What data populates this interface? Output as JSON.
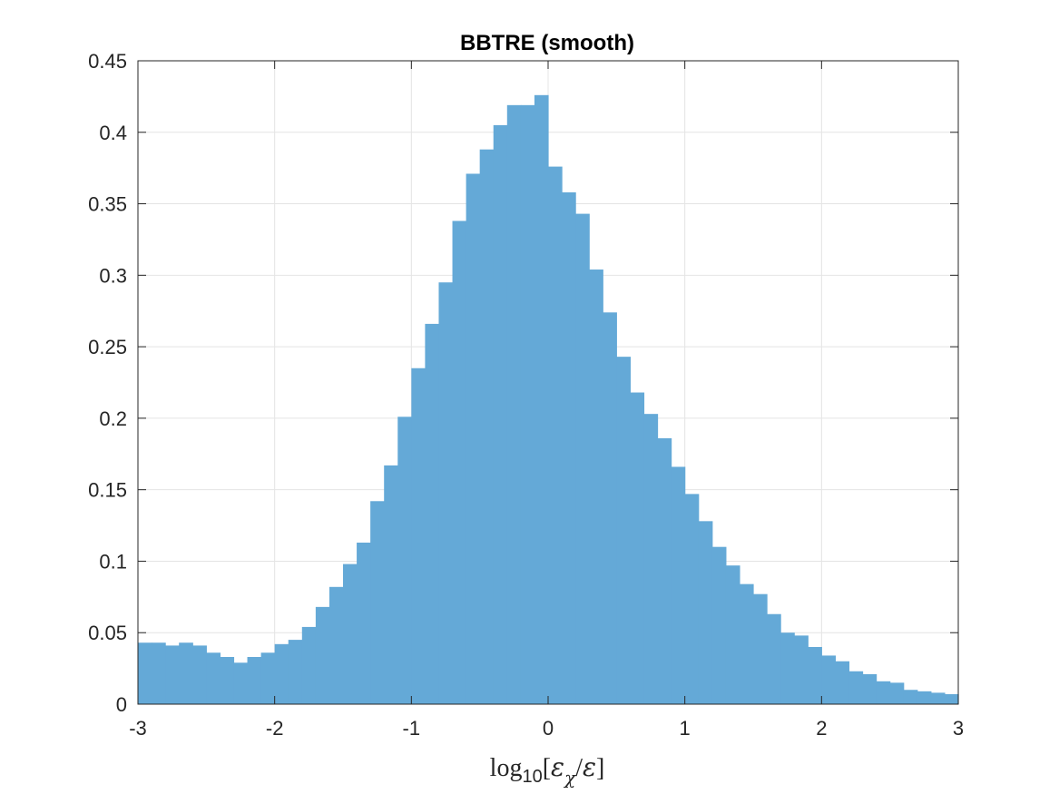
{
  "chart_data": {
    "type": "bar",
    "title": "BBTRE (smooth)",
    "xlabel": {
      "log_prefix": "log",
      "log_subscript": "10",
      "open_bracket": "[",
      "numerator": "ε",
      "numerator_subscript": "χ",
      "slash": "/",
      "denominator": "ε",
      "close_bracket": "]"
    },
    "ylabel": "",
    "xlim": [
      -3,
      3
    ],
    "ylim": [
      0,
      0.45
    ],
    "grid": true,
    "bin_start": -3,
    "bin_width": 0.1,
    "values": [
      0.043,
      0.043,
      0.041,
      0.043,
      0.041,
      0.036,
      0.033,
      0.029,
      0.033,
      0.036,
      0.042,
      0.045,
      0.054,
      0.068,
      0.082,
      0.098,
      0.113,
      0.142,
      0.167,
      0.201,
      0.235,
      0.266,
      0.295,
      0.338,
      0.371,
      0.388,
      0.405,
      0.419,
      0.419,
      0.426,
      0.376,
      0.358,
      0.343,
      0.304,
      0.274,
      0.243,
      0.218,
      0.203,
      0.186,
      0.166,
      0.147,
      0.128,
      0.11,
      0.097,
      0.084,
      0.077,
      0.063,
      0.05,
      0.048,
      0.04,
      0.034,
      0.03,
      0.023,
      0.021,
      0.016,
      0.015,
      0.01,
      0.009,
      0.008,
      0.007,
      0.006
    ],
    "xticks": [
      "-3",
      "-2",
      "-1",
      "0",
      "1",
      "2",
      "3"
    ],
    "yticks": [
      "0",
      "0.05",
      "0.1",
      "0.15",
      "0.2",
      "0.25",
      "0.3",
      "0.35",
      "0.4",
      "0.45"
    ],
    "colors": {
      "bar": "#64a9d7",
      "axes": "#262626",
      "grid": "#e4e4e4"
    }
  }
}
